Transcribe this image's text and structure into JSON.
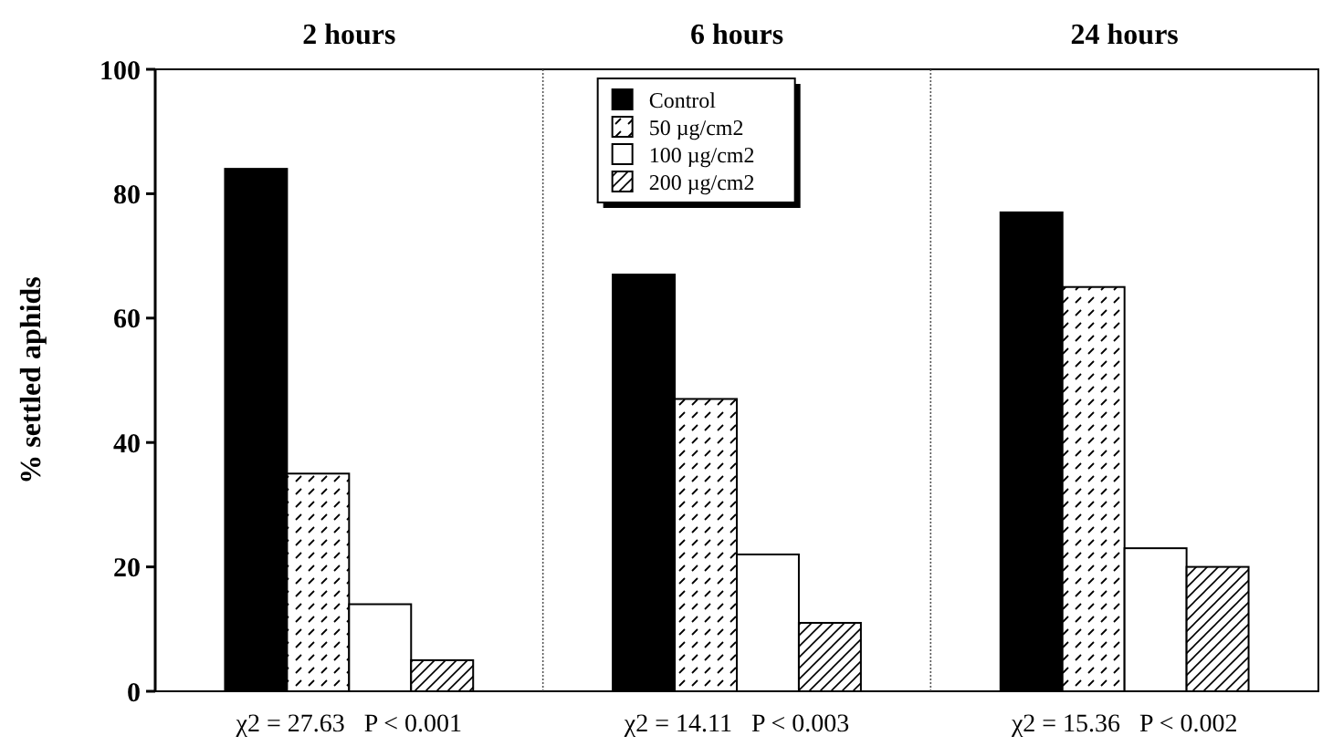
{
  "chart_data": {
    "type": "bar",
    "ylabel": "% settled aphids",
    "categories": [
      "2 hours",
      "6 hours",
      "24 hours"
    ],
    "series": [
      {
        "name": "Control",
        "color": "#000000",
        "values": [
          84,
          67,
          77
        ]
      },
      {
        "name": "50 µg/cm2",
        "color": "#ffffff",
        "values": [
          35,
          47,
          65
        ]
      },
      {
        "name": "100 µg/cm2",
        "color": "#ffffff",
        "values": [
          14,
          22,
          23
        ]
      },
      {
        "name": "200 µg/cm2",
        "color": "#ffffff",
        "values": [
          5,
          11,
          20
        ]
      }
    ],
    "ylim": [
      0,
      100
    ],
    "yticks": [
      0,
      20,
      40,
      60,
      80,
      100
    ],
    "legend": "top",
    "grid": false,
    "annotations": [
      "χ2 = 27.63   P < 0.001",
      "χ2 = 14.11   P < 0.003",
      "χ2 = 15.36   P < 0.002"
    ]
  }
}
